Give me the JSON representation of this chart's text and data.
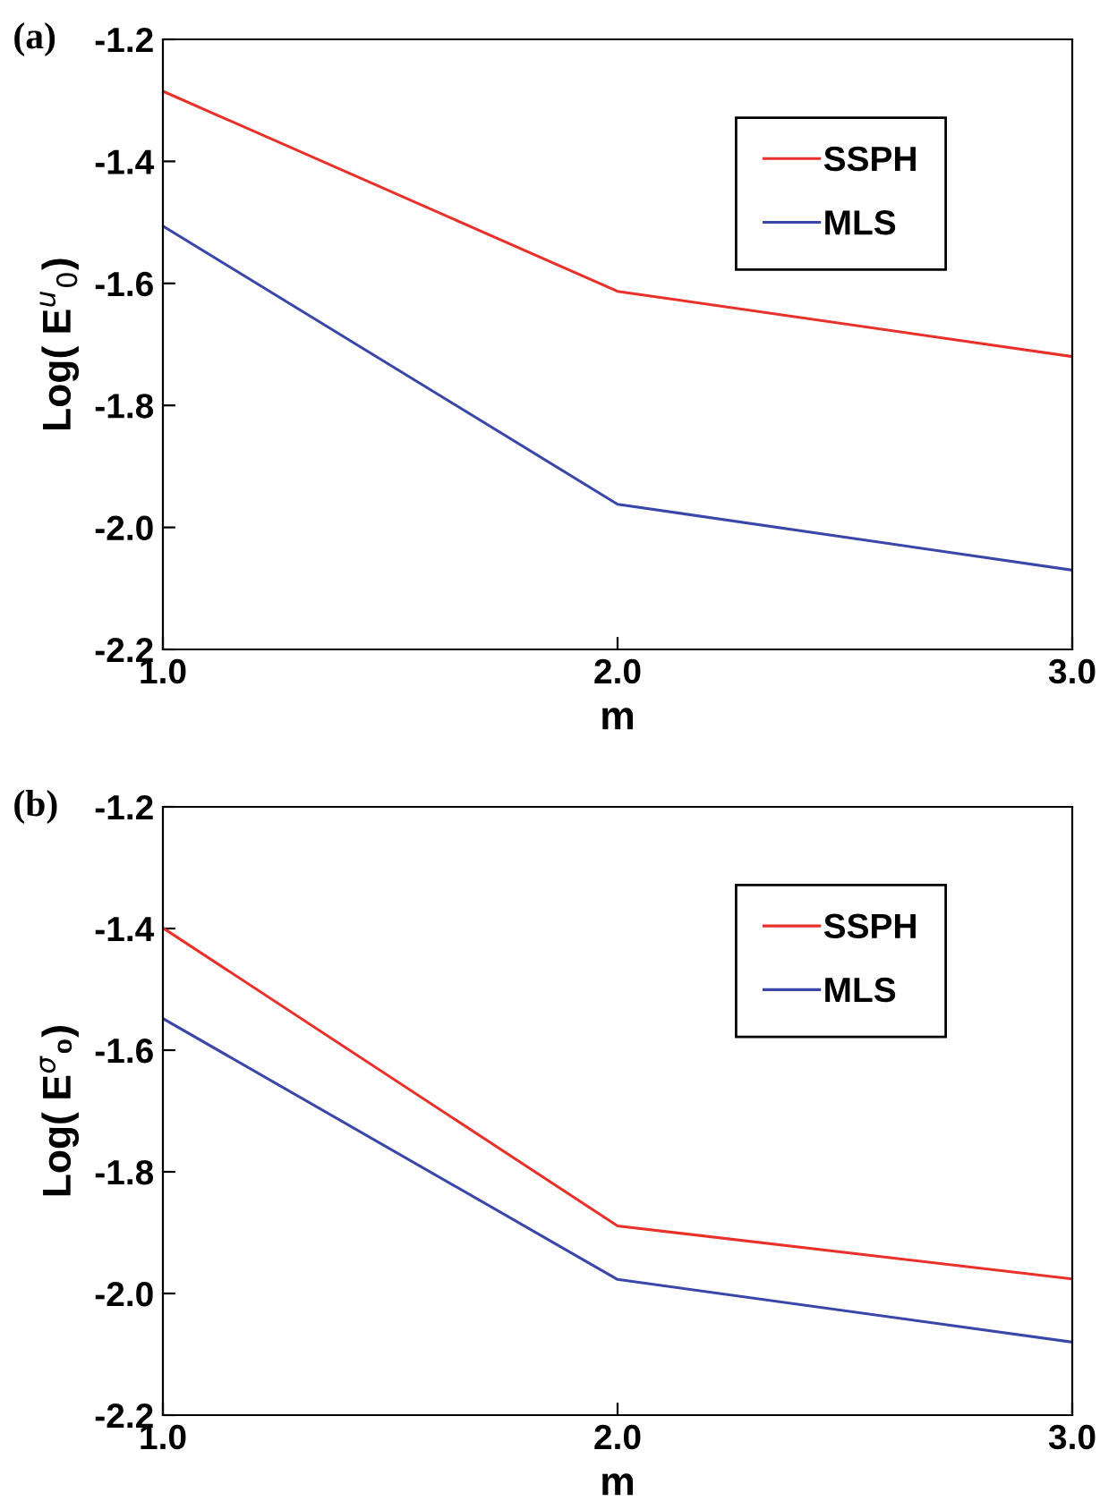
{
  "chart_data": [
    {
      "type": "line",
      "title": "(a)",
      "xlabel": "m",
      "ylabel": "Log( E$^{u}$$_{0}$)",
      "x": [
        1.0,
        2.0,
        3.0
      ],
      "series": [
        {
          "name": "SSPH",
          "color": "#e8312a",
          "values": [
            -1.285,
            -1.613,
            -1.72
          ]
        },
        {
          "name": "MLS",
          "color": "#3a47a8",
          "values": [
            -1.506,
            -1.962,
            -2.07
          ]
        }
      ],
      "xlim": [
        1.0,
        3.0
      ],
      "xticks": [
        {
          "value": 1.0,
          "label": "1.0"
        },
        {
          "value": 2.0,
          "label": "2.0"
        },
        {
          "value": 3.0,
          "label": "3.0"
        }
      ],
      "ylim": [
        -2.2,
        -1.2
      ],
      "yticks": [
        -2.2,
        {
          "value": -2.0,
          "label": "-2.0"
        },
        -1.8,
        -1.6,
        -1.4,
        -1.2
      ],
      "grid": false,
      "legend": "top right",
      "marker": "none",
      "line_style": "solid"
    },
    {
      "type": "line",
      "title": "(b)",
      "xlabel": "m",
      "ylabel": "Log( E$^{σ}$₀)",
      "x": [
        1.0,
        2.0,
        3.0
      ],
      "series": [
        {
          "name": "SSPH",
          "color": "#e8312a",
          "values": [
            -1.399,
            -1.889,
            -1.976
          ]
        },
        {
          "name": "MLS",
          "color": "#3a47a8",
          "values": [
            -1.548,
            -1.977,
            -2.08
          ]
        }
      ],
      "xlim": [
        1.0,
        3.0
      ],
      "xticks": [
        {
          "value": 1.0,
          "label": "1.0"
        },
        {
          "value": 2.0,
          "label": "2.0"
        },
        {
          "value": 3.0,
          "label": "3.0"
        }
      ],
      "ylim": [
        -2.2,
        -1.2
      ],
      "yticks": [
        -2.2,
        {
          "value": -2.0,
          "label": "-2.0"
        },
        -1.8,
        -1.6,
        -1.4,
        -1.2
      ],
      "grid": false,
      "legend": "top right",
      "marker": "none",
      "line_style": "solid"
    }
  ]
}
